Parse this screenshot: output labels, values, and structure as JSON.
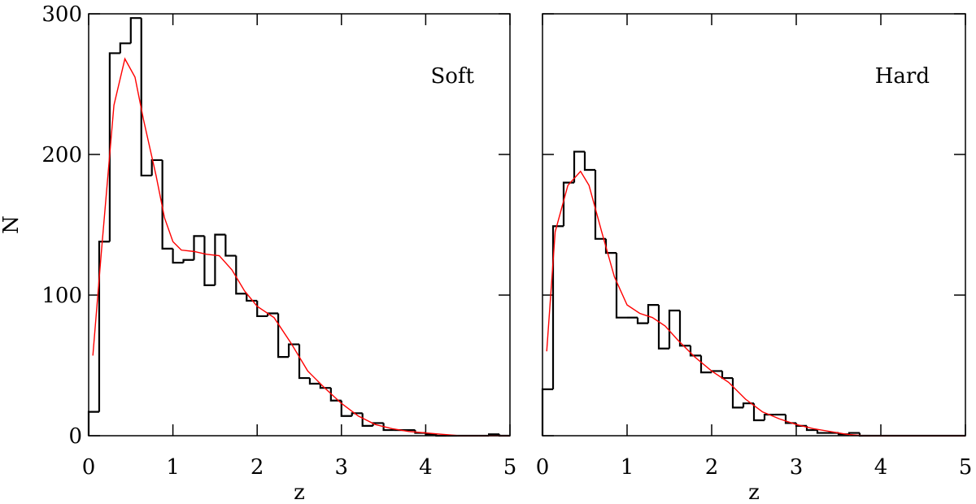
{
  "chart_data": [
    {
      "type": "histogram",
      "annotation": "Soft",
      "xlabel": "z",
      "ylabel": "N",
      "bins": [
        0,
        0.125,
        0.25,
        0.375,
        0.5,
        0.625,
        0.75,
        0.875,
        1,
        1.125,
        1.25,
        1.375,
        1.5,
        1.625,
        1.75,
        1.875,
        2,
        2.125,
        2.25,
        2.375,
        2.5,
        2.625,
        2.75,
        2.875,
        3,
        3.125,
        3.25,
        3.375,
        3.5,
        3.625,
        3.75,
        3.875,
        4,
        4.125,
        4.25,
        4.375,
        4.5,
        4.625,
        4.75,
        4.875,
        5
      ],
      "values": [
        17,
        138,
        272,
        279,
        297,
        185,
        196,
        133,
        123,
        125,
        142,
        107,
        143,
        128,
        101,
        96,
        85,
        87,
        56,
        65,
        41,
        37,
        34,
        25,
        14,
        16,
        7,
        9,
        4,
        4,
        4,
        2,
        1,
        0,
        0,
        0,
        0,
        0,
        1,
        0
      ],
      "color": "#000000",
      "line": {
        "x": [
          0.05,
          0.15,
          0.3,
          0.43,
          0.55,
          0.65,
          0.8,
          0.9,
          1.0,
          1.1,
          1.25,
          1.4,
          1.55,
          1.7,
          1.85,
          2.0,
          2.2,
          2.4,
          2.6,
          2.8,
          3.0,
          3.2,
          3.4,
          3.6,
          3.8,
          4.0,
          4.2,
          4.4,
          5.0
        ],
        "values": [
          57,
          130,
          235,
          268,
          255,
          225,
          185,
          155,
          138,
          132,
          131,
          129,
          128,
          118,
          103,
          92,
          84,
          66,
          46,
          34,
          23,
          14,
          8,
          5,
          3,
          2,
          1,
          0,
          0
        ],
        "color": "#ff0000"
      },
      "xlim": [
        0,
        5
      ],
      "ylim": [
        0,
        300
      ],
      "xticks": [
        0,
        1,
        2,
        3,
        4,
        5
      ],
      "yticks": [
        0,
        100,
        200,
        300
      ],
      "ytick_labels": true
    },
    {
      "type": "histogram",
      "annotation": "Hard",
      "xlabel": "z",
      "bins": [
        0,
        0.125,
        0.25,
        0.375,
        0.5,
        0.625,
        0.75,
        0.875,
        1,
        1.125,
        1.25,
        1.375,
        1.5,
        1.625,
        1.75,
        1.875,
        2,
        2.125,
        2.25,
        2.375,
        2.5,
        2.625,
        2.75,
        2.875,
        3,
        3.125,
        3.25,
        3.375,
        3.5,
        3.625,
        3.75,
        3.875,
        4,
        4.125,
        4.25,
        4.375,
        4.5,
        4.625,
        4.75,
        4.875,
        5
      ],
      "values": [
        33,
        149,
        180,
        202,
        189,
        140,
        130,
        84,
        84,
        80,
        93,
        62,
        89,
        64,
        57,
        45,
        46,
        41,
        20,
        23,
        11,
        15,
        15,
        9,
        7,
        4,
        2,
        2,
        1,
        2,
        0,
        0,
        0,
        0,
        0,
        0,
        0,
        0,
        0,
        0
      ],
      "color": "#000000",
      "line": {
        "x": [
          0.05,
          0.15,
          0.3,
          0.45,
          0.55,
          0.7,
          0.85,
          1.0,
          1.15,
          1.3,
          1.45,
          1.6,
          1.8,
          2.0,
          2.2,
          2.4,
          2.6,
          2.8,
          3.0,
          3.2,
          3.4,
          3.6,
          3.8,
          5.0
        ],
        "values": [
          60,
          145,
          178,
          188,
          178,
          145,
          113,
          93,
          87,
          84,
          78,
          68,
          56,
          46,
          38,
          26,
          17,
          12,
          8,
          5,
          3,
          1,
          0,
          0
        ],
        "color": "#ff0000"
      },
      "xlim": [
        0,
        5
      ],
      "ylim": [
        0,
        300
      ],
      "xticks": [
        0,
        1,
        2,
        3,
        4,
        5
      ],
      "yticks": [
        0,
        100,
        200,
        300
      ],
      "ytick_labels": false
    }
  ]
}
